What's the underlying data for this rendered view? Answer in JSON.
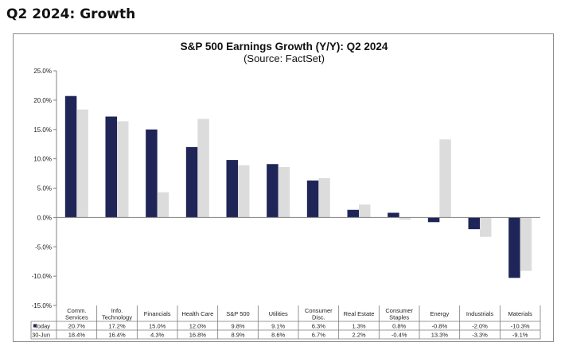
{
  "page": {
    "heading": "Q2 2024: Growth"
  },
  "chart_data": {
    "type": "bar",
    "title": "S&P 500 Earnings Growth (Y/Y): Q2 2024",
    "subtitle": "(Source: FactSet)",
    "categories": [
      [
        "Comm.",
        "Services"
      ],
      [
        "Info.",
        "Technology"
      ],
      [
        "Financials"
      ],
      [
        "Health Care"
      ],
      [
        "S&P 500"
      ],
      [
        "Utilities"
      ],
      [
        "Consumer",
        "Disc."
      ],
      [
        "Real Estate"
      ],
      [
        "Consumer",
        "Staples"
      ],
      [
        "Energy"
      ],
      [
        "Industrials"
      ],
      [
        "Materials"
      ]
    ],
    "series": [
      {
        "name": "Today",
        "color": "#1f2557",
        "values": [
          20.7,
          17.2,
          15.0,
          12.0,
          9.8,
          9.1,
          6.3,
          1.3,
          0.8,
          -0.8,
          -2.0,
          -10.3
        ],
        "labels": [
          "20.7%",
          "17.2%",
          "15.0%",
          "12.0%",
          "9.8%",
          "9.1%",
          "6.3%",
          "1.3%",
          "0.8%",
          "-0.8%",
          "-2.0%",
          "-10.3%"
        ]
      },
      {
        "name": "30-Jun",
        "color": "#dcdcdc",
        "values": [
          18.4,
          16.4,
          4.3,
          16.8,
          8.9,
          8.6,
          6.7,
          2.2,
          -0.4,
          13.3,
          -3.3,
          -9.1
        ],
        "labels": [
          "18.4%",
          "16.4%",
          "4.3%",
          "16.8%",
          "8.9%",
          "8.6%",
          "6.7%",
          "2.2%",
          "-0.4%",
          "13.3%",
          "-3.3%",
          "-9.1%"
        ]
      }
    ],
    "ylim": [
      -15,
      25
    ],
    "yticks": [
      25,
      20,
      15,
      10,
      5,
      0,
      -5,
      -10,
      -15
    ],
    "ytick_labels": [
      "25.0%",
      "20.0%",
      "15.0%",
      "10.0%",
      "5.0%",
      "0.0%",
      "-5.0%",
      "-10.0%",
      "-15.0%"
    ],
    "grid": false,
    "legend": "data-table"
  }
}
